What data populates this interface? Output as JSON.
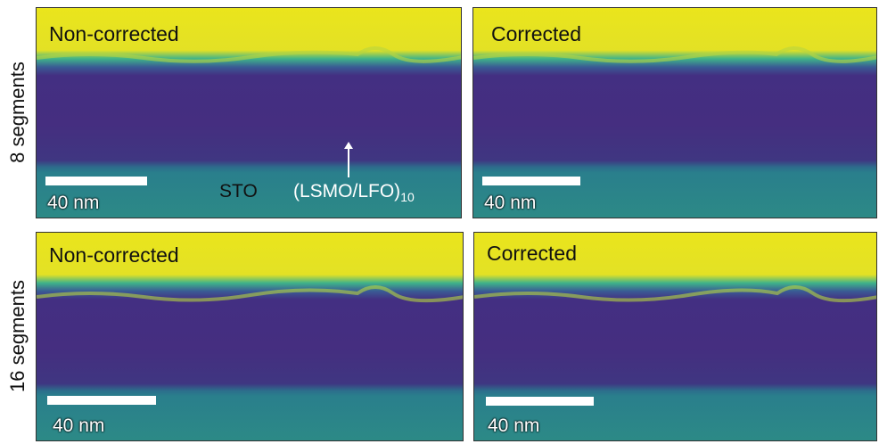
{
  "rows": [
    {
      "label": "8 segments",
      "panels": [
        {
          "title": "Non-corrected",
          "scale_bar": "40 nm"
        },
        {
          "title": "Corrected",
          "scale_bar": "40 nm"
        }
      ]
    },
    {
      "label": "16 segments",
      "panels": [
        {
          "title": "Non-corrected",
          "scale_bar": "40 nm"
        },
        {
          "title": "Corrected",
          "scale_bar": "40 nm"
        }
      ]
    }
  ],
  "annotations": {
    "substrate": "STO",
    "superlattice": "(LSMO/LFO)",
    "repeat": "10"
  }
}
